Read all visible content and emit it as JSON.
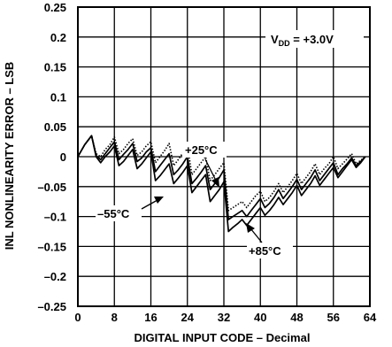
{
  "chart_data": {
    "type": "line",
    "title": "",
    "xlabel": "DIGITAL INPUT CODE – Decimal",
    "ylabel": "INL NONLINEARITY ERROR – LSB",
    "xlim": [
      0,
      64
    ],
    "ylim": [
      -0.25,
      0.25
    ],
    "xticks": [
      "0",
      "8",
      "16",
      "24",
      "32",
      "40",
      "48",
      "56",
      "64"
    ],
    "yticks": [
      "0.25",
      "0.2",
      "0.15",
      "0.1",
      "0.05",
      "0",
      "–0.05",
      "–0.1",
      "–0.15",
      "–0.2",
      "–0.25"
    ],
    "grid": true,
    "annotations": {
      "vdd_main": "V",
      "vdd_sub": "DD",
      "vdd_rest": " = +3.0V",
      "t25": "+25°C",
      "tm55": "–55°C",
      "t85": "+85°C"
    },
    "series": [
      {
        "name": "+25°C",
        "style": "dotted",
        "x": [
          0,
          1.5,
          3,
          4,
          5,
          6,
          7,
          8,
          9,
          10,
          11,
          12,
          13,
          14,
          15,
          16,
          17,
          18,
          19,
          20,
          21,
          22,
          23,
          24,
          25,
          26,
          27,
          28,
          29,
          30,
          31,
          32,
          33,
          34,
          35,
          36,
          37,
          38,
          39,
          40,
          41,
          42,
          43,
          44,
          45,
          46,
          47,
          48,
          49,
          50,
          51,
          52,
          53,
          54,
          55,
          56,
          57,
          58,
          59,
          60,
          61,
          62,
          63
        ],
        "y": [
          0,
          0.02,
          0.035,
          0.005,
          0,
          0.012,
          0.02,
          0.033,
          0.005,
          0.012,
          0.022,
          0.03,
          0.002,
          0.008,
          0.018,
          0.025,
          -0.01,
          0,
          0.01,
          0.022,
          -0.015,
          -0.005,
          0.006,
          0.018,
          -0.03,
          -0.02,
          -0.01,
          0,
          -0.04,
          -0.03,
          -0.02,
          -0.01,
          -0.09,
          -0.085,
          -0.08,
          -0.075,
          -0.085,
          -0.075,
          -0.065,
          -0.058,
          -0.075,
          -0.068,
          -0.058,
          -0.045,
          -0.06,
          -0.05,
          -0.04,
          -0.028,
          -0.045,
          -0.035,
          -0.025,
          -0.012,
          -0.03,
          -0.02,
          -0.012,
          0,
          -0.02,
          -0.012,
          -0.004,
          0.005,
          -0.012,
          -0.006,
          0.0
        ]
      },
      {
        "name": "–55°C",
        "style": "solid",
        "x": [
          0,
          1.5,
          3,
          4,
          5,
          6,
          7,
          8,
          9,
          10,
          11,
          12,
          13,
          14,
          15,
          16,
          17,
          18,
          19,
          20,
          21,
          22,
          23,
          24,
          25,
          26,
          27,
          28,
          29,
          30,
          31,
          32,
          33,
          34,
          35,
          36,
          37,
          38,
          39,
          40,
          41,
          42,
          43,
          44,
          45,
          46,
          47,
          48,
          49,
          50,
          51,
          52,
          53,
          54,
          55,
          56,
          57,
          58,
          59,
          60,
          61,
          62,
          63
        ],
        "y": [
          0,
          0.02,
          0.035,
          0.002,
          -0.005,
          0.005,
          0.015,
          0.025,
          -0.005,
          0.004,
          0.012,
          0.022,
          -0.008,
          -0.002,
          0.008,
          0.015,
          -0.025,
          -0.015,
          -0.005,
          0.005,
          -0.03,
          -0.022,
          -0.012,
          0,
          -0.045,
          -0.036,
          -0.026,
          -0.015,
          -0.055,
          -0.045,
          -0.035,
          -0.022,
          -0.105,
          -0.1,
          -0.095,
          -0.09,
          -0.1,
          -0.09,
          -0.08,
          -0.07,
          -0.085,
          -0.078,
          -0.068,
          -0.055,
          -0.07,
          -0.06,
          -0.05,
          -0.038,
          -0.055,
          -0.045,
          -0.035,
          -0.022,
          -0.04,
          -0.03,
          -0.02,
          -0.01,
          -0.03,
          -0.02,
          -0.012,
          -0.002,
          -0.015,
          -0.008,
          0.0
        ]
      },
      {
        "name": "+85°C",
        "style": "solid",
        "x": [
          0,
          1.5,
          3,
          4,
          5,
          6,
          7,
          8,
          9,
          10,
          11,
          12,
          13,
          14,
          15,
          16,
          17,
          18,
          19,
          20,
          21,
          22,
          23,
          24,
          25,
          26,
          27,
          28,
          29,
          30,
          31,
          32,
          33,
          34,
          35,
          36,
          37,
          38,
          39,
          40,
          41,
          42,
          43,
          44,
          45,
          46,
          47,
          48,
          49,
          50,
          51,
          52,
          53,
          54,
          55,
          56,
          57,
          58,
          59,
          60,
          61,
          62,
          63
        ],
        "y": [
          0,
          0.02,
          0.035,
          0,
          -0.01,
          0,
          0.008,
          0.018,
          -0.015,
          -0.008,
          0.002,
          0.012,
          -0.02,
          -0.012,
          -0.002,
          0.008,
          -0.04,
          -0.032,
          -0.022,
          -0.012,
          -0.045,
          -0.036,
          -0.026,
          -0.015,
          -0.06,
          -0.05,
          -0.04,
          -0.03,
          -0.075,
          -0.065,
          -0.055,
          -0.042,
          -0.125,
          -0.118,
          -0.112,
          -0.105,
          -0.115,
          -0.105,
          -0.095,
          -0.085,
          -0.098,
          -0.09,
          -0.08,
          -0.068,
          -0.08,
          -0.07,
          -0.06,
          -0.048,
          -0.065,
          -0.055,
          -0.045,
          -0.032,
          -0.048,
          -0.038,
          -0.028,
          -0.018,
          -0.035,
          -0.025,
          -0.015,
          -0.005,
          -0.018,
          -0.01,
          0.0
        ]
      }
    ]
  }
}
